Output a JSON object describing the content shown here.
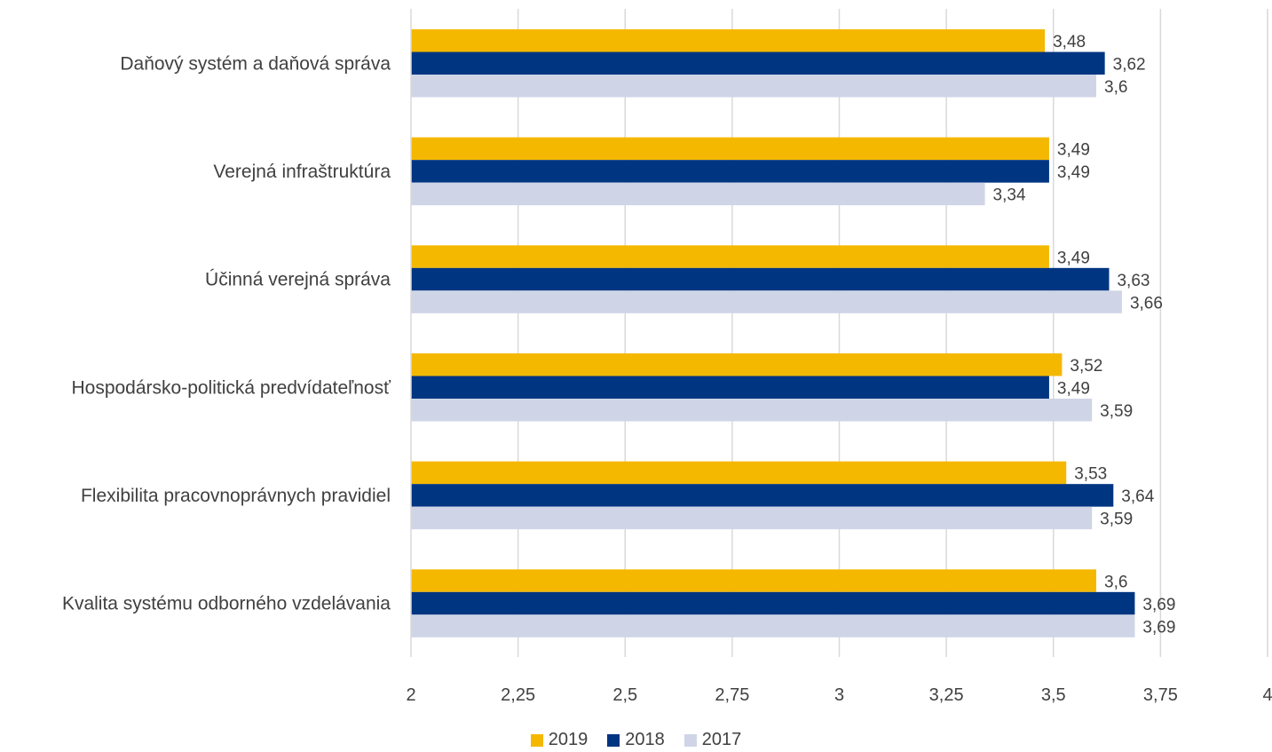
{
  "chart_data": {
    "type": "bar",
    "orientation": "horizontal",
    "categories": [
      "Daňový systém a daňová správa",
      "Verejná infraštruktúra",
      "Účinná verejná správa",
      "Hospodársko-politická predvídateľnosť",
      "Flexibilita pracovnoprávnych pravidiel",
      "Kvalita systému odborného vzdelávania"
    ],
    "series": [
      {
        "name": "2019",
        "color": "#F5B800",
        "values": [
          3.48,
          3.49,
          3.49,
          3.52,
          3.53,
          3.6
        ],
        "labels": [
          "3,48",
          "3,49",
          "3,49",
          "3,52",
          "3,53",
          "3,6"
        ]
      },
      {
        "name": "2018",
        "color": "#003581",
        "values": [
          3.62,
          3.49,
          3.63,
          3.49,
          3.64,
          3.69
        ],
        "labels": [
          "3,62",
          "3,49",
          "3,63",
          "3,49",
          "3,64",
          "3,69"
        ]
      },
      {
        "name": "2017",
        "color": "#CFD5E6",
        "values": [
          3.6,
          3.34,
          3.66,
          3.59,
          3.59,
          3.69
        ],
        "labels": [
          "3,6",
          "3,34",
          "3,66",
          "3,59",
          "3,59",
          "3,69"
        ]
      }
    ],
    "xlim": [
      2,
      4
    ],
    "xticks": [
      2,
      2.25,
      2.5,
      2.75,
      3,
      3.25,
      3.5,
      3.75,
      4
    ],
    "xtick_labels": [
      "2",
      "2,25",
      "2,5",
      "2,75",
      "3",
      "3,25",
      "3,5",
      "3,75",
      "4"
    ],
    "grid": true,
    "legend": "bottom",
    "title": "",
    "xlabel": "",
    "ylabel": ""
  },
  "legend": {
    "items": [
      {
        "label": "2019",
        "color": "#F5B800"
      },
      {
        "label": "2018",
        "color": "#003581"
      },
      {
        "label": "2017",
        "color": "#CFD5E6"
      }
    ]
  }
}
